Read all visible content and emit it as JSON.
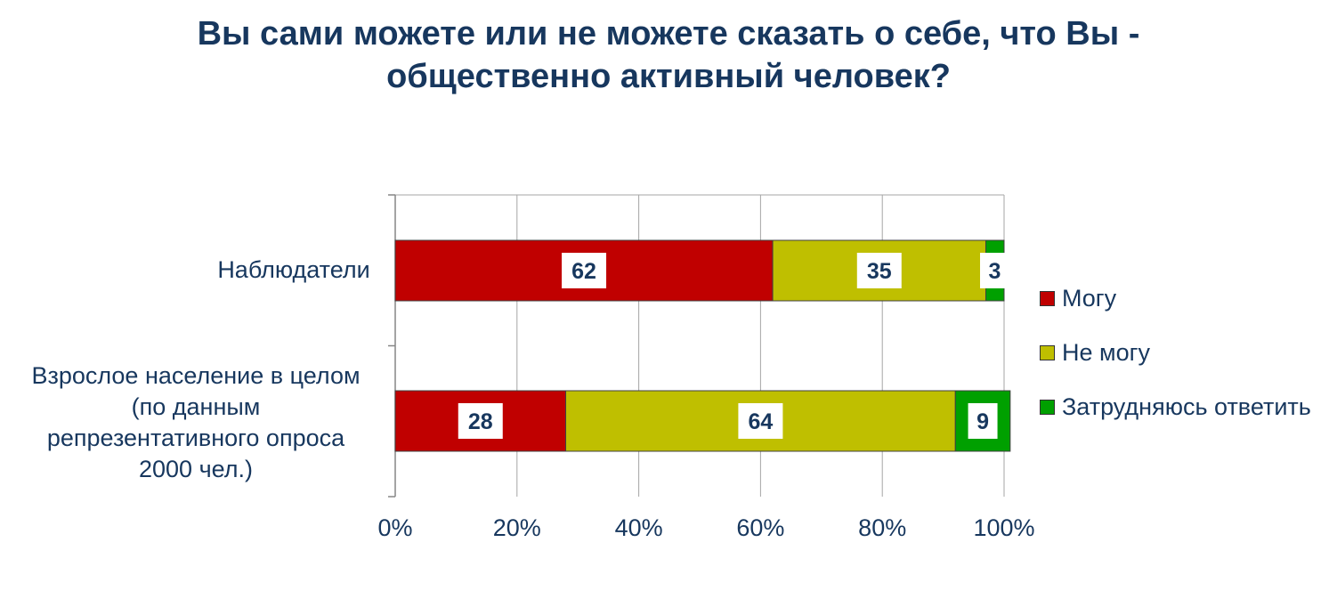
{
  "chart_data": {
    "type": "bar",
    "orientation": "horizontal",
    "stacked": "percent",
    "title_lines": [
      "Вы сами можете или не можете сказать о себе, что Вы -",
      "общественно активный человек?"
    ],
    "categories": [
      {
        "lines": [
          "Наблюдатели"
        ]
      },
      {
        "lines": [
          "Взрослое население в целом",
          "(по данным",
          "репрезентативного опроса",
          "2000 чел.)"
        ]
      }
    ],
    "series": [
      {
        "name": "Могу",
        "color": "#c00000",
        "values": [
          62,
          28
        ]
      },
      {
        "name": "Не могу",
        "color": "#bfbf00",
        "values": [
          35,
          64
        ]
      },
      {
        "name": "Затрудняюсь ответить",
        "color": "#00a000",
        "values": [
          3,
          9
        ]
      }
    ],
    "xlim": [
      0,
      100
    ],
    "x_ticks": [
      "0%",
      "20%",
      "40%",
      "60%",
      "80%",
      "100%"
    ],
    "grid": true,
    "legend_position": "right"
  },
  "colors": {
    "text": "#17375e",
    "gridline": "#a6a6a6"
  }
}
